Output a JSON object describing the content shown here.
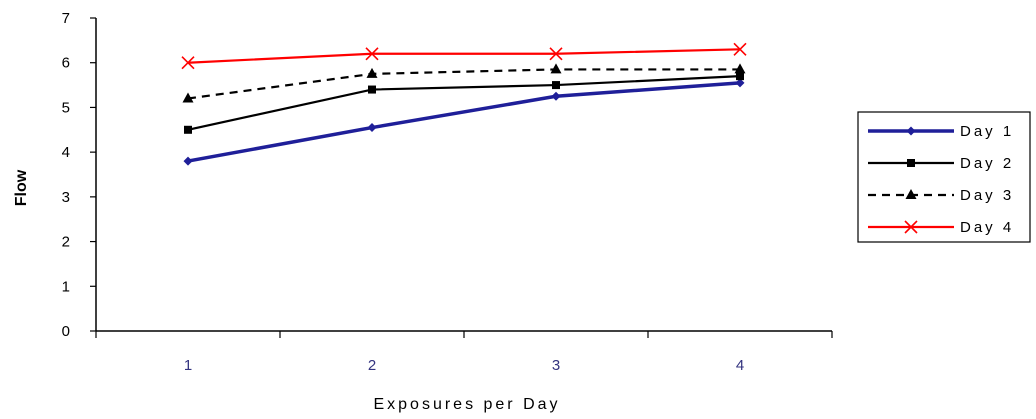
{
  "chart_data": {
    "type": "line",
    "title": "",
    "xlabel": "Exposures per Day",
    "ylabel": "Flow",
    "categories": [
      "1",
      "2",
      "3",
      "4"
    ],
    "ylim": [
      0,
      7
    ],
    "yticks": [
      "0",
      "1",
      "2",
      "3",
      "4",
      "5",
      "6",
      "7"
    ],
    "grid": false,
    "legend_position": "right",
    "series": [
      {
        "name": "Day 1",
        "values": [
          3.8,
          4.55,
          5.25,
          5.55
        ],
        "color": "#1f1f99",
        "marker": "diamond",
        "dash": "solid"
      },
      {
        "name": "Day 2",
        "values": [
          4.5,
          5.4,
          5.5,
          5.7
        ],
        "color": "#000000",
        "marker": "square",
        "dash": "solid"
      },
      {
        "name": "Day 3",
        "values": [
          5.2,
          5.75,
          5.85,
          5.85
        ],
        "color": "#000000",
        "marker": "triangle",
        "dash": "dashed"
      },
      {
        "name": "Day 4",
        "values": [
          6.0,
          6.2,
          6.2,
          6.3
        ],
        "color": "#ff0000",
        "marker": "x",
        "dash": "solid"
      }
    ]
  }
}
